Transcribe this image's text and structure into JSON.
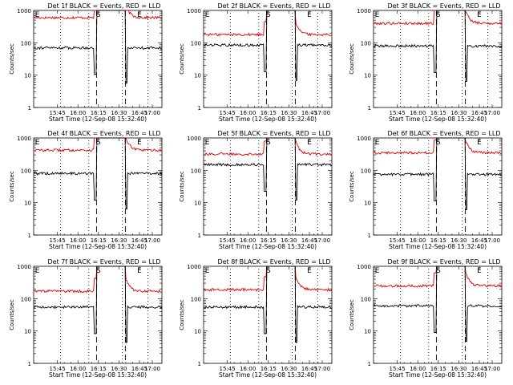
{
  "chart_data": {
    "type": "line",
    "y_scale": "log",
    "ylim": [
      1,
      1000
    ],
    "ytick_labels": [
      "1",
      "10",
      "100",
      "1000"
    ],
    "xtick_labels": [
      "15:45",
      "16:00",
      "16:15",
      "16:30",
      "16:45",
      "17:00"
    ],
    "ylabel": "Counts/sec",
    "xlabel": "Start Time (12-Sep-08 15:32:40)",
    "series_colors": {
      "events": "#000000",
      "lld": "#dd0000"
    },
    "markers": {
      "E": "E",
      "S": "S"
    },
    "panels": [
      {
        "title": "Det 1f BLACK = Events, RED = LLD",
        "events_base": 70,
        "lld_base": 600
      },
      {
        "title": "Det 2f BLACK = Events, RED = LLD",
        "events_base": 85,
        "lld_base": 180
      },
      {
        "title": "Det 3f BLACK = Events, RED = LLD",
        "events_base": 80,
        "lld_base": 400
      },
      {
        "title": "Det 4f BLACK = Events, RED = LLD",
        "events_base": 80,
        "lld_base": 420
      },
      {
        "title": "Det 5f BLACK = Events, RED = LLD",
        "events_base": 150,
        "lld_base": 320
      },
      {
        "title": "Det 6f BLACK = Events, RED = LLD",
        "events_base": 75,
        "lld_base": 350
      },
      {
        "title": "Det 7f BLACK = Events, RED = LLD",
        "events_base": 55,
        "lld_base": 170
      },
      {
        "title": "Det 8f BLACK = Events, RED = LLD",
        "events_base": 55,
        "lld_base": 190
      },
      {
        "title": "Det 9f BLACK = Events, RED = LLD",
        "events_base": 60,
        "lld_base": 250
      }
    ]
  }
}
